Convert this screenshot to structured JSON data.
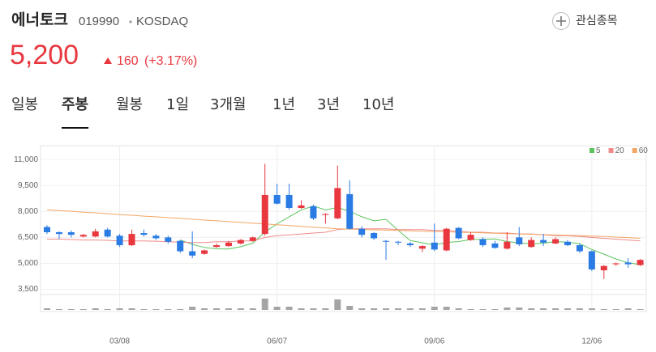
{
  "header": {
    "name": "에너토크",
    "code": "019990",
    "market": "KOSDAQ",
    "watch": "관심종목"
  },
  "price": {
    "value": "5,200",
    "change": "160",
    "percent": "(+3.17%)"
  },
  "tabs": [
    "일봉",
    "주봉",
    "월봉",
    "1일",
    "3개월",
    "1년",
    "3년",
    "10년"
  ],
  "selected_tab": "주봉",
  "chart_data": {
    "type": "candlestick",
    "categories": [
      null,
      null,
      null,
      null,
      null,
      null,
      "03/08",
      null,
      null,
      null,
      null,
      null,
      null,
      null,
      null,
      null,
      null,
      null,
      null,
      "06/07",
      null,
      null,
      null,
      null,
      null,
      null,
      null,
      null,
      null,
      null,
      null,
      null,
      "09/06",
      null,
      null,
      null,
      null,
      null,
      null,
      null,
      null,
      null,
      null,
      null,
      null,
      "12/06",
      null,
      null,
      null,
      null
    ],
    "open": [
      7100,
      6800,
      6800,
      6550,
      6550,
      6950,
      6600,
      6050,
      6750,
      6600,
      6500,
      6300,
      5700,
      5550,
      5950,
      6000,
      6150,
      6300,
      6700,
      8950,
      8950,
      8200,
      8300,
      7800,
      7600,
      9000,
      7000,
      6750,
      6300,
      6250,
      6150,
      5850,
      6200,
      5750,
      7050,
      6350,
      6400,
      6150,
      5850,
      6500,
      5950,
      6350,
      6150,
      6250,
      6050,
      5700,
      4600,
      4950,
      5050,
      4900
    ],
    "high": [
      7200,
      6850,
      6900,
      6700,
      7000,
      7050,
      6700,
      6950,
      6950,
      6700,
      6600,
      6350,
      6850,
      5800,
      6150,
      6300,
      6400,
      6550,
      10750,
      9600,
      9600,
      8650,
      8400,
      7900,
      10650,
      9800,
      7150,
      6800,
      6350,
      6300,
      6250,
      6050,
      7300,
      7050,
      7100,
      6800,
      6500,
      6300,
      6800,
      7100,
      6500,
      6700,
      6500,
      6350,
      6150,
      5750,
      4900,
      5050,
      5300,
      5250
    ],
    "low": [
      6700,
      6400,
      6500,
      6500,
      6500,
      6500,
      5950,
      6000,
      6550,
      6350,
      6150,
      5600,
      5300,
      5500,
      5900,
      5950,
      6100,
      6250,
      6600,
      8400,
      8100,
      8150,
      7500,
      7300,
      7550,
      6950,
      6500,
      6350,
      5200,
      6050,
      5950,
      5650,
      5700,
      5700,
      6400,
      6300,
      5950,
      5850,
      5800,
      6000,
      5900,
      6000,
      6100,
      6000,
      5600,
      4550,
      4100,
      4850,
      4750,
      4850
    ],
    "close": [
      6800,
      6700,
      6650,
      6650,
      6850,
      6550,
      6050,
      6700,
      6650,
      6450,
      6250,
      5700,
      5450,
      5750,
      6050,
      6200,
      6350,
      6500,
      8950,
      8450,
      8200,
      8350,
      7600,
      7850,
      9350,
      7000,
      6650,
      6450,
      6250,
      6200,
      6050,
      6000,
      5800,
      7000,
      6450,
      6650,
      6050,
      5900,
      6250,
      6100,
      6350,
      6200,
      6400,
      6050,
      5700,
      4650,
      4850,
      5000,
      4950,
      5200
    ],
    "volume": [
      1,
      0,
      0,
      0,
      1,
      0,
      1,
      1,
      0,
      0,
      0,
      0,
      3,
      1,
      1,
      1,
      1,
      1,
      13,
      3,
      3,
      1,
      1,
      1,
      12,
      4,
      1,
      1,
      1,
      1,
      1,
      1,
      3,
      3,
      1,
      0,
      0,
      0,
      2,
      2,
      1,
      1,
      1,
      1,
      1,
      1,
      0,
      0,
      1,
      0
    ],
    "up_color": "#e8373f",
    "down_color": "#2a7be4",
    "volume_color": "#a5a5a5",
    "series": [
      {
        "name": "5",
        "color": "#5cc45c",
        "values": [
          null,
          null,
          null,
          null,
          null,
          null,
          null,
          null,
          null,
          null,
          null,
          6350,
          6100,
          5920,
          5840,
          5830,
          5960,
          6170,
          6810,
          7290,
          7690,
          8090,
          8310,
          8090,
          8230,
          8010,
          7690,
          7460,
          7540,
          6910,
          6320,
          6190,
          6060,
          6210,
          6260,
          6380,
          6390,
          6410,
          6260,
          6190,
          6120,
          6170,
          6260,
          6220,
          6140,
          5800,
          5530,
          5250,
          5030,
          4930
        ]
      },
      {
        "name": "20",
        "color": "#f08a8a",
        "values": [
          6400,
          6400,
          6380,
          6350,
          6350,
          6330,
          6300,
          6300,
          6300,
          6280,
          6250,
          6230,
          6200,
          6200,
          6250,
          6250,
          6300,
          6300,
          6500,
          6600,
          6650,
          6700,
          6750,
          6800,
          6950,
          7000,
          7000,
          7000,
          7000,
          6950,
          6950,
          6950,
          6900,
          6900,
          6850,
          6800,
          6800,
          6750,
          6750,
          6700,
          6700,
          6650,
          6600,
          6600,
          6550,
          6500,
          6450,
          6400,
          6350,
          6300
        ]
      },
      {
        "name": "60",
        "color": "#f2a766",
        "values": [
          8100,
          8050,
          8010,
          7960,
          7920,
          7870,
          7820,
          7780,
          7730,
          7690,
          7640,
          7600,
          7550,
          7500,
          7460,
          7410,
          7370,
          7320,
          7280,
          7230,
          7190,
          7140,
          7090,
          7050,
          7000,
          6980,
          6960,
          6940,
          6920,
          6900,
          6880,
          6860,
          6840,
          6820,
          6800,
          6780,
          6760,
          6740,
          6720,
          6700,
          6680,
          6660,
          6640,
          6620,
          6600,
          6580,
          6560,
          6520,
          6490,
          6450
        ]
      }
    ],
    "ylim": [
      3200,
      11800
    ],
    "yticks": [
      {
        "value": 3500,
        "label": "3,500"
      },
      {
        "value": 5000,
        "label": "5,000"
      },
      {
        "value": 6500,
        "label": "6,500"
      },
      {
        "value": 8000,
        "label": "8,000"
      },
      {
        "value": 9500,
        "label": "9,500"
      },
      {
        "value": 11000,
        "label": "11,000"
      }
    ],
    "grid": true,
    "legend": "top-right"
  }
}
